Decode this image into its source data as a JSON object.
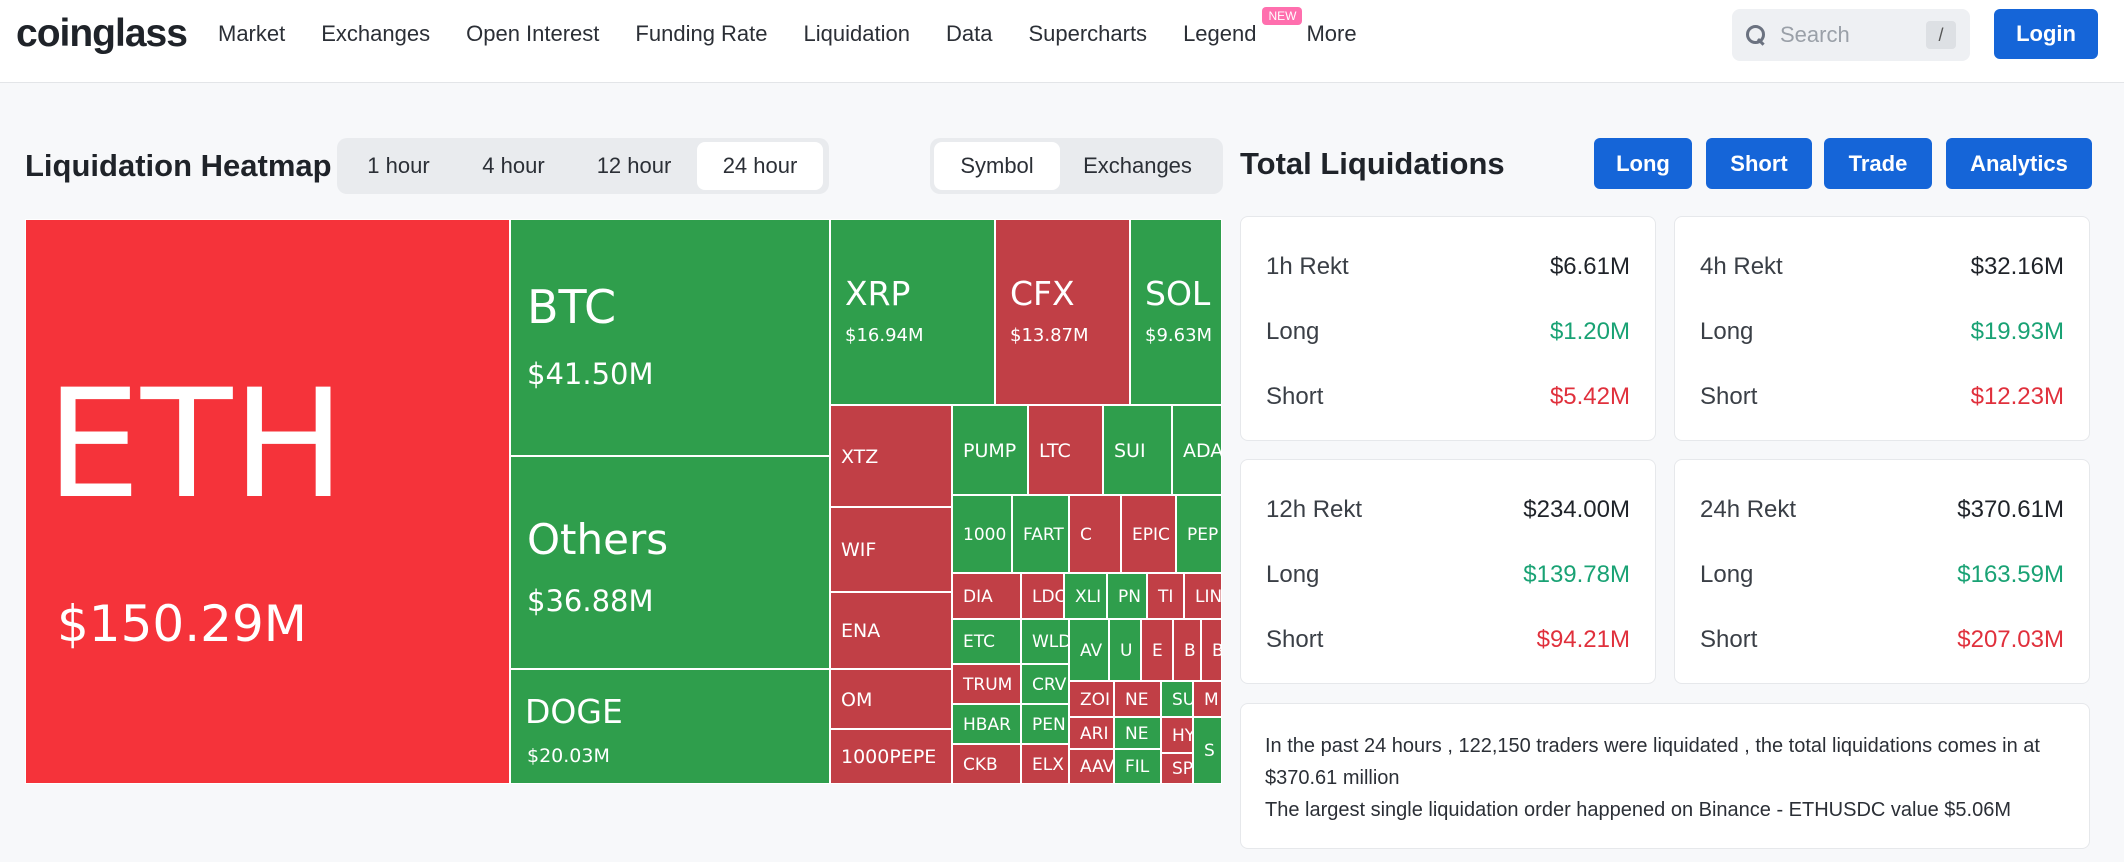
{
  "header": {
    "logo": "coinglass",
    "nav": [
      "Market",
      "Exchanges",
      "Open Interest",
      "Funding Rate",
      "Liquidation",
      "Data",
      "Supercharts",
      "Legend",
      "More"
    ],
    "new_badge": "NEW",
    "search_placeholder": "Search",
    "search_shortcut": "/",
    "login": "Login"
  },
  "heatmap": {
    "title": "Liquidation Heatmap",
    "time_tabs": [
      "1 hour",
      "4 hour",
      "12 hour",
      "24 hour"
    ],
    "active_time": "24 hour",
    "view_tabs": [
      "Symbol",
      "Exchanges"
    ],
    "active_view": "Symbol",
    "tiles": [
      {
        "symbol": "ETH",
        "value": "$150.29M",
        "color": "#f5333a"
      },
      {
        "symbol": "BTC",
        "value": "$41.50M",
        "color": "#2f9e4c"
      },
      {
        "symbol": "Others",
        "value": "$36.88M",
        "color": "#2f9e4c"
      },
      {
        "symbol": "DOGE",
        "value": "$20.03M",
        "color": "#2f9e4c"
      },
      {
        "symbol": "XRP",
        "value": "$16.94M",
        "color": "#2f9e4c"
      },
      {
        "symbol": "CFX",
        "value": "$13.87M",
        "color": "#c13f46"
      },
      {
        "symbol": "SOL",
        "value": "$9.63M",
        "color": "#2f9e4c"
      },
      {
        "symbol": "XTZ",
        "color": "#c13f46"
      },
      {
        "symbol": "WIF",
        "color": "#c13f46"
      },
      {
        "symbol": "ENA",
        "color": "#c13f46"
      },
      {
        "symbol": "OM",
        "color": "#c13f46"
      },
      {
        "symbol": "1000PEPE",
        "color": "#c13f46"
      },
      {
        "symbol": "PUMP",
        "color": "#2f9e4c"
      },
      {
        "symbol": "LTC",
        "color": "#c13f46"
      },
      {
        "symbol": "SUI",
        "color": "#2f9e4c"
      },
      {
        "symbol": "ADA",
        "color": "#2f9e4c"
      },
      {
        "symbol": "1000",
        "color": "#2f9e4c"
      },
      {
        "symbol": "FART",
        "color": "#2f9e4c"
      },
      {
        "symbol": "C",
        "color": "#c13f46"
      },
      {
        "symbol": "EPIC",
        "color": "#c13f46"
      },
      {
        "symbol": "PEP",
        "color": "#2f9e4c"
      },
      {
        "symbol": "DIA",
        "color": "#c13f46"
      },
      {
        "symbol": "LDO",
        "color": "#c13f46"
      },
      {
        "symbol": "XLI",
        "color": "#2f9e4c"
      },
      {
        "symbol": "PN",
        "color": "#2f9e4c"
      },
      {
        "symbol": "TI",
        "color": "#c13f46"
      },
      {
        "symbol": "LIN",
        "color": "#c13f46"
      },
      {
        "symbol": "ETC",
        "color": "#2f9e4c"
      },
      {
        "symbol": "WLD",
        "color": "#2f9e4c"
      },
      {
        "symbol": "AV",
        "color": "#2f9e4c"
      },
      {
        "symbol": "U",
        "color": "#2f9e4c"
      },
      {
        "symbol": "E",
        "color": "#c13f46"
      },
      {
        "symbol": "B",
        "color": "#c13f46"
      },
      {
        "symbol": "B",
        "color": "#c13f46"
      },
      {
        "symbol": "TRUM",
        "color": "#c13f46"
      },
      {
        "symbol": "CRV",
        "color": "#2f9e4c"
      },
      {
        "symbol": "ZOI",
        "color": "#c13f46"
      },
      {
        "symbol": "NE",
        "color": "#c13f46"
      },
      {
        "symbol": "SU",
        "color": "#2f9e4c"
      },
      {
        "symbol": "M",
        "color": "#c13f46"
      },
      {
        "symbol": "HBAR",
        "color": "#2f9e4c"
      },
      {
        "symbol": "PEN",
        "color": "#2f9e4c"
      },
      {
        "symbol": "ARI",
        "color": "#c13f46"
      },
      {
        "symbol": "NE",
        "color": "#2f9e4c"
      },
      {
        "symbol": "HY",
        "color": "#c13f46"
      },
      {
        "symbol": "CKB",
        "color": "#c13f46"
      },
      {
        "symbol": "ELX",
        "color": "#c13f46"
      },
      {
        "symbol": "AAV",
        "color": "#c13f46"
      },
      {
        "symbol": "FIL",
        "color": "#2f9e4c"
      },
      {
        "symbol": "SPX",
        "color": "#c13f46"
      },
      {
        "symbol": "S",
        "color": "#2f9e4c"
      }
    ]
  },
  "total": {
    "title": "Total Liquidations",
    "buttons": [
      "Long",
      "Short",
      "Trade",
      "Analytics"
    ],
    "cards": [
      {
        "label": "1h Rekt",
        "total": "$6.61M",
        "long_label": "Long",
        "long": "$1.20M",
        "short_label": "Short",
        "short": "$5.42M"
      },
      {
        "label": "4h Rekt",
        "total": "$32.16M",
        "long_label": "Long",
        "long": "$19.93M",
        "short_label": "Short",
        "short": "$12.23M"
      },
      {
        "label": "12h Rekt",
        "total": "$234.00M",
        "long_label": "Long",
        "long": "$139.78M",
        "short_label": "Short",
        "short": "$94.21M"
      },
      {
        "label": "24h Rekt",
        "total": "$370.61M",
        "long_label": "Long",
        "long": "$163.59M",
        "short_label": "Short",
        "short": "$207.03M"
      }
    ],
    "summary_1": "In the past 24 hours , 122,150 traders were liquidated , the total liquidations comes in at $370.61 million",
    "summary_2": "The largest single liquidation order happened on Binance - ETHUSDC value $5.06M"
  }
}
